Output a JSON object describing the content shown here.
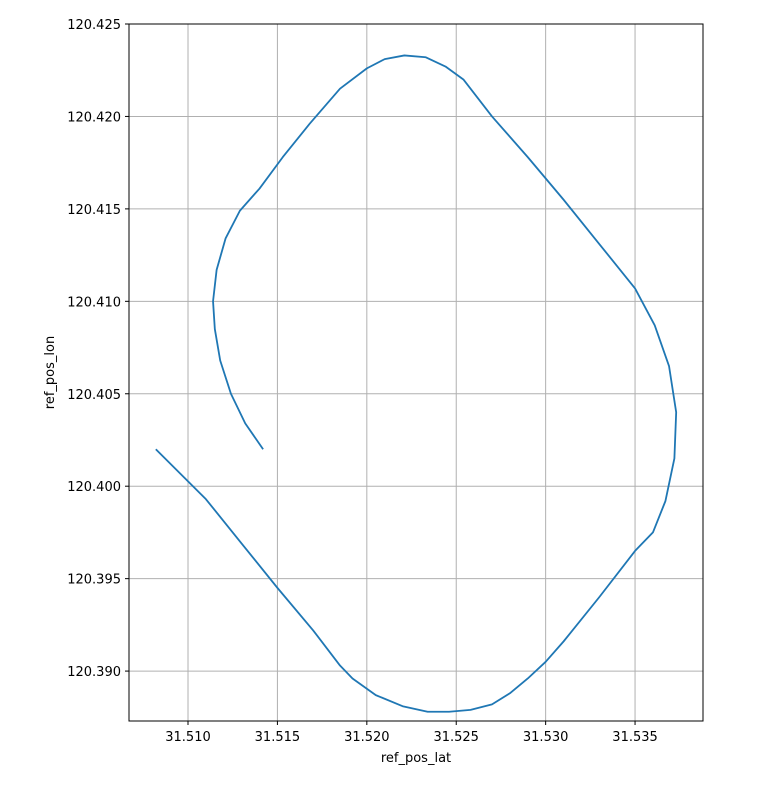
{
  "chart_data": {
    "type": "line",
    "title": "",
    "xlabel": "ref_pos_lat",
    "ylabel": "ref_pos_lon",
    "xlim": [
      31.5067,
      31.5388
    ],
    "ylim": [
      120.3873,
      120.425
    ],
    "xticks": [
      31.51,
      31.515,
      31.52,
      31.525,
      31.53,
      31.535
    ],
    "xtick_labels": [
      "31.510",
      "31.515",
      "31.520",
      "31.525",
      "31.530",
      "31.535"
    ],
    "yticks": [
      120.39,
      120.395,
      120.4,
      120.405,
      120.41,
      120.415,
      120.42,
      120.425
    ],
    "ytick_labels": [
      "120.390",
      "120.395",
      "120.400",
      "120.405",
      "120.410",
      "120.415",
      "120.420",
      "120.425"
    ],
    "grid": true,
    "legend": "none",
    "series": [
      {
        "color": "#1f77b4",
        "x": [
          31.5142,
          31.5132,
          31.5124,
          31.5118,
          31.5115,
          31.5114,
          31.5116,
          31.5121,
          31.5129,
          31.514,
          31.5153,
          31.5168,
          31.5185,
          31.52,
          31.521,
          31.5221,
          31.5233,
          31.5244,
          31.5254,
          31.527,
          31.529,
          31.531,
          31.533,
          31.535,
          31.5361,
          31.5369,
          31.5373,
          31.5372,
          31.5367,
          31.536,
          31.535,
          31.533,
          31.531,
          31.53,
          31.529,
          31.528,
          31.527,
          31.5258,
          31.5246,
          31.5234,
          31.522,
          31.5205,
          31.5192,
          31.5185,
          31.517,
          31.515,
          31.513,
          31.511,
          31.5082
        ],
        "y": [
          120.402,
          120.4034,
          120.405,
          120.4068,
          120.4085,
          120.41,
          120.4117,
          120.4134,
          120.4149,
          120.4161,
          120.4178,
          120.4196,
          120.4215,
          120.4226,
          120.4231,
          120.4233,
          120.4232,
          120.4227,
          120.422,
          120.42,
          120.4178,
          120.4155,
          120.4131,
          120.4107,
          120.4087,
          120.4065,
          120.404,
          120.4015,
          120.3992,
          120.3975,
          120.3965,
          120.394,
          120.3916,
          120.3905,
          120.3896,
          120.3888,
          120.3882,
          120.3879,
          120.3878,
          120.3878,
          120.3881,
          120.3887,
          120.3896,
          120.3903,
          120.3922,
          120.3945,
          120.3969,
          120.3993,
          120.402
        ]
      }
    ]
  }
}
